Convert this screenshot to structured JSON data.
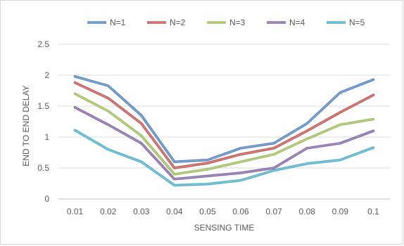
{
  "chart_data": {
    "type": "line",
    "title": "",
    "xlabel": "SENSING TIME",
    "ylabel": "END TO END DELAY",
    "categories": [
      "0.01",
      "0.02",
      "0.03",
      "0.04",
      "0.05",
      "0.06",
      "0.07",
      "0.08",
      "0.09",
      "0.1"
    ],
    "ylim": [
      0,
      2.5
    ],
    "yticks": [
      "0",
      "0.5",
      "1",
      "1.5",
      "2",
      "2.5"
    ],
    "grid": "horizontal",
    "legend_position": "top",
    "series": [
      {
        "name": "N=1",
        "color": "#4f81bd",
        "values": [
          1.98,
          1.83,
          1.35,
          0.6,
          0.63,
          0.82,
          0.9,
          1.22,
          1.72,
          1.93
        ]
      },
      {
        "name": "N=2",
        "color": "#c0504d",
        "values": [
          1.88,
          1.63,
          1.22,
          0.5,
          0.58,
          0.72,
          0.82,
          1.1,
          1.4,
          1.68
        ]
      },
      {
        "name": "N=3",
        "color": "#9bbb59",
        "values": [
          1.7,
          1.42,
          1.02,
          0.4,
          0.48,
          0.6,
          0.72,
          0.97,
          1.2,
          1.29
        ]
      },
      {
        "name": "N=4",
        "color": "#8064a2",
        "values": [
          1.48,
          1.2,
          0.9,
          0.32,
          0.37,
          0.42,
          0.5,
          0.82,
          0.9,
          1.1
        ]
      },
      {
        "name": "N=5",
        "color": "#4bacc6",
        "values": [
          1.11,
          0.8,
          0.6,
          0.22,
          0.24,
          0.3,
          0.46,
          0.57,
          0.63,
          0.83
        ]
      }
    ]
  }
}
